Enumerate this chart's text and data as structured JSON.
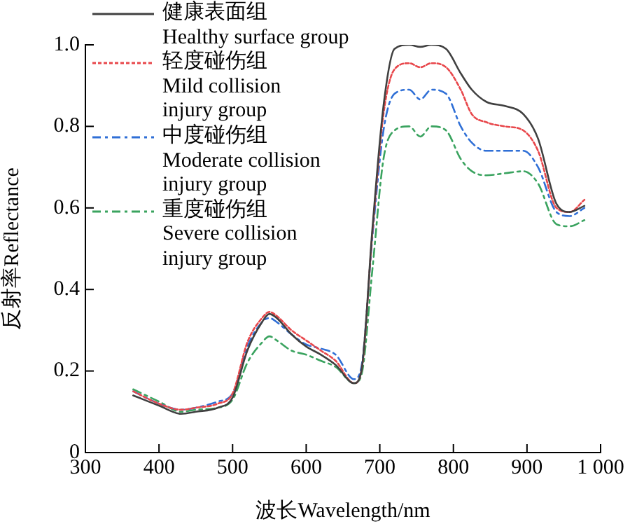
{
  "chart_data": {
    "type": "line",
    "xlabel": "波长Wavelength/nm",
    "ylabel": "反射率Reflectance",
    "x": [
      365,
      400,
      430,
      450,
      480,
      500,
      520,
      540,
      550,
      560,
      580,
      600,
      620,
      640,
      665,
      675,
      690,
      705,
      720,
      740,
      755,
      770,
      790,
      810,
      825,
      845,
      870,
      895,
      915,
      940,
      958,
      978
    ],
    "series": [
      {
        "name": "健康表面组\nHealthy surface group",
        "color": "#404040",
        "line_style": "solid",
        "values": [
          0.14,
          0.115,
          0.095,
          0.1,
          0.11,
          0.135,
          0.25,
          0.32,
          0.34,
          0.33,
          0.29,
          0.26,
          0.24,
          0.215,
          0.17,
          0.2,
          0.55,
          0.85,
          0.99,
          1.0,
          0.995,
          1.0,
          0.99,
          0.93,
          0.89,
          0.86,
          0.85,
          0.83,
          0.77,
          0.61,
          0.59,
          0.605
        ]
      },
      {
        "name": "轻度碰伤组\nMild collision\ninjury group",
        "color": "#e8474b",
        "line_style": "dotted",
        "values": [
          0.15,
          0.12,
          0.105,
          0.11,
          0.12,
          0.145,
          0.27,
          0.33,
          0.345,
          0.335,
          0.3,
          0.275,
          0.25,
          0.225,
          0.17,
          0.2,
          0.54,
          0.83,
          0.94,
          0.955,
          0.945,
          0.955,
          0.945,
          0.89,
          0.83,
          0.81,
          0.8,
          0.79,
          0.74,
          0.6,
          0.59,
          0.62
        ]
      },
      {
        "name": "中度碰伤组\nModerate collision\ninjury group",
        "color": "#2f6fd6",
        "line_style": "dashed",
        "values": [
          0.15,
          0.12,
          0.105,
          0.11,
          0.125,
          0.145,
          0.26,
          0.32,
          0.33,
          0.32,
          0.29,
          0.265,
          0.255,
          0.24,
          0.18,
          0.21,
          0.53,
          0.79,
          0.88,
          0.89,
          0.866,
          0.89,
          0.88,
          0.8,
          0.76,
          0.74,
          0.74,
          0.74,
          0.7,
          0.59,
          0.58,
          0.6
        ]
      },
      {
        "name": "重度碰伤组\nSevere collision\ninjury group",
        "color": "#3aa35f",
        "line_style": "dashed",
        "values": [
          0.155,
          0.125,
          0.1,
          0.105,
          0.11,
          0.13,
          0.22,
          0.27,
          0.285,
          0.275,
          0.25,
          0.24,
          0.225,
          0.21,
          0.17,
          0.19,
          0.45,
          0.72,
          0.79,
          0.8,
          0.775,
          0.8,
          0.79,
          0.72,
          0.69,
          0.68,
          0.685,
          0.69,
          0.66,
          0.56,
          0.555,
          0.57
        ]
      }
    ],
    "xlim": [
      300,
      1000
    ],
    "xticks": [
      300,
      400,
      500,
      600,
      700,
      800,
      900,
      {
        "value": 1000,
        "label": "1 000"
      }
    ],
    "ylim": [
      0,
      1.0
    ],
    "yticks": [
      0,
      0.2,
      0.4,
      0.6,
      0.8,
      {
        "value": 1.0,
        "label": "1.0"
      }
    ],
    "grid": false,
    "legend": "top left",
    "marker": "none"
  }
}
